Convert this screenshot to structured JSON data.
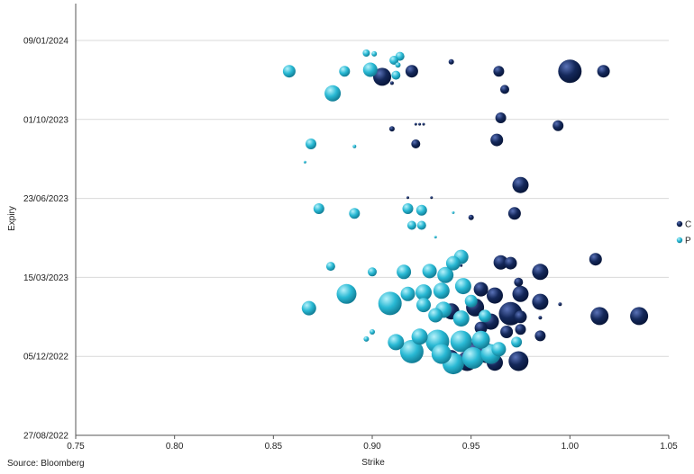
{
  "chart_data": {
    "type": "scatter",
    "xlabel": "Strike",
    "ylabel": "Expiry",
    "xlim": [
      0.75,
      1.05
    ],
    "x_ticks": [
      "0.75",
      "0.80",
      "0.85",
      "0.90",
      "0.95",
      "1.00",
      "1.05"
    ],
    "y_ticks": [
      "27/08/2022",
      "05/12/2022",
      "15/03/2023",
      "23/06/2023",
      "01/10/2023",
      "09/01/2024"
    ],
    "ylim": [
      "27/08/2022",
      "09/01/2024"
    ],
    "grid": "horizontal",
    "legend_position": "right",
    "source": "Source: Bloomberg",
    "series": [
      {
        "name": "C",
        "color": "#14285a",
        "points": [
          [
            1.0,
            "2023-12-01",
            13
          ],
          [
            1.017,
            "2023-12-01",
            7
          ],
          [
            0.964,
            "2023-12-01",
            6
          ],
          [
            0.92,
            "2023-12-01",
            7
          ],
          [
            0.905,
            "2023-11-24",
            10
          ],
          [
            0.94,
            "2023-12-13",
            3
          ],
          [
            0.967,
            "2023-11-08",
            5
          ],
          [
            0.91,
            "2023-11-16",
            2
          ],
          [
            0.965,
            "2023-10-03",
            6
          ],
          [
            0.994,
            "2023-09-23",
            6
          ],
          [
            0.91,
            "2023-09-19",
            3
          ],
          [
            0.922,
            "2023-09-25",
            1.5
          ],
          [
            0.924,
            "2023-09-25",
            1.5
          ],
          [
            0.926,
            "2023-09-25",
            1.5
          ],
          [
            0.963,
            "2023-09-05",
            7
          ],
          [
            0.922,
            "2023-08-31",
            5
          ],
          [
            0.975,
            "2023-07-10",
            9
          ],
          [
            0.972,
            "2023-06-04",
            7
          ],
          [
            0.95,
            "2023-05-30",
            3
          ],
          [
            0.918,
            "2023-06-24",
            1.5
          ],
          [
            0.93,
            "2023-06-24",
            1.5
          ],
          [
            1.013,
            "2023-04-07",
            7
          ],
          [
            0.965,
            "2023-04-03",
            8
          ],
          [
            0.97,
            "2023-04-02",
            7
          ],
          [
            0.985,
            "2023-03-22",
            9
          ],
          [
            0.974,
            "2023-03-09",
            5
          ],
          [
            0.955,
            "2023-02-28",
            8
          ],
          [
            0.962,
            "2023-02-20",
            9
          ],
          [
            0.975,
            "2023-02-22",
            9
          ],
          [
            0.985,
            "2023-02-12",
            9
          ],
          [
            0.995,
            "2023-02-09",
            2
          ],
          [
            0.952,
            "2023-02-05",
            10
          ],
          [
            0.97,
            "2023-01-28",
            13
          ],
          [
            0.94,
            "2023-01-31",
            9
          ],
          [
            0.96,
            "2023-01-18",
            9
          ],
          [
            0.975,
            "2023-01-24",
            7
          ],
          [
            1.015,
            "2023-01-25",
            10
          ],
          [
            1.035,
            "2023-01-25",
            10
          ],
          [
            0.985,
            "2023-01-23",
            2
          ],
          [
            0.968,
            "2023-01-05",
            7
          ],
          [
            0.975,
            "2023-01-08",
            6
          ],
          [
            0.955,
            "2023-01-10",
            7
          ],
          [
            0.985,
            "2022-12-31",
            6
          ],
          [
            0.952,
            "2022-12-11",
            11
          ],
          [
            0.958,
            "2022-12-09",
            11
          ],
          [
            0.974,
            "2022-11-29",
            11
          ],
          [
            0.948,
            "2022-11-29",
            11
          ],
          [
            0.962,
            "2022-11-27",
            9
          ],
          [
            0.94,
            "2022-12-04",
            8
          ],
          [
            0.945,
            "2023-03-30",
            1.5
          ]
        ]
      },
      {
        "name": "P",
        "color": "#29b9d4",
        "points": [
          [
            0.897,
            "2023-12-24",
            4
          ],
          [
            0.901,
            "2023-12-23",
            3
          ],
          [
            0.914,
            "2023-12-20",
            5
          ],
          [
            0.911,
            "2023-12-15",
            5
          ],
          [
            0.858,
            "2023-12-01",
            7
          ],
          [
            0.886,
            "2023-12-01",
            6
          ],
          [
            0.899,
            "2023-12-03",
            8
          ],
          [
            0.912,
            "2023-11-26",
            5
          ],
          [
            0.88,
            "2023-11-03",
            9
          ],
          [
            0.913,
            "2023-12-09",
            3
          ],
          [
            0.869,
            "2023-08-31",
            6
          ],
          [
            0.891,
            "2023-08-28",
            2
          ],
          [
            0.866,
            "2023-08-08",
            1.5
          ],
          [
            0.873,
            "2023-06-10",
            6
          ],
          [
            0.891,
            "2023-06-04",
            6
          ],
          [
            0.918,
            "2023-06-10",
            6
          ],
          [
            0.925,
            "2023-06-08",
            6
          ],
          [
            0.92,
            "2023-05-20",
            5
          ],
          [
            0.925,
            "2023-05-20",
            5
          ],
          [
            0.932,
            "2023-05-05",
            1.5
          ],
          [
            0.941,
            "2023-06-05",
            1.5
          ],
          [
            0.945,
            "2023-04-10",
            8
          ],
          [
            0.941,
            "2023-04-02",
            8
          ],
          [
            0.879,
            "2023-03-29",
            5
          ],
          [
            0.9,
            "2023-03-22",
            5
          ],
          [
            0.916,
            "2023-03-22",
            8
          ],
          [
            0.929,
            "2023-03-23",
            8
          ],
          [
            0.937,
            "2023-03-18",
            9
          ],
          [
            0.887,
            "2023-02-22",
            11
          ],
          [
            0.918,
            "2023-02-22",
            8
          ],
          [
            0.926,
            "2023-02-24",
            9
          ],
          [
            0.935,
            "2023-02-26",
            9
          ],
          [
            0.946,
            "2023-03-04",
            9
          ],
          [
            0.909,
            "2023-02-10",
            13
          ],
          [
            0.926,
            "2023-02-08",
            8
          ],
          [
            0.868,
            "2023-02-04",
            8
          ],
          [
            0.936,
            "2023-02-02",
            9
          ],
          [
            0.95,
            "2023-02-13",
            7
          ],
          [
            0.932,
            "2023-01-26",
            8
          ],
          [
            0.945,
            "2023-01-22",
            9
          ],
          [
            0.957,
            "2023-01-25",
            7
          ],
          [
            0.9,
            "2023-01-05",
            3
          ],
          [
            0.912,
            "2022-12-23",
            9
          ],
          [
            0.924,
            "2022-12-30",
            9
          ],
          [
            0.933,
            "2022-12-24",
            13
          ],
          [
            0.945,
            "2022-12-24",
            12
          ],
          [
            0.955,
            "2022-12-26",
            10
          ],
          [
            0.92,
            "2022-12-11",
            13
          ],
          [
            0.935,
            "2022-12-08",
            11
          ],
          [
            0.941,
            "2022-11-26",
            12
          ],
          [
            0.951,
            "2022-12-03",
            12
          ],
          [
            0.96,
            "2022-12-08",
            11
          ],
          [
            0.964,
            "2022-12-14",
            8
          ],
          [
            0.973,
            "2022-12-23",
            6
          ],
          [
            0.897,
            "2022-12-27",
            3
          ]
        ]
      }
    ]
  }
}
